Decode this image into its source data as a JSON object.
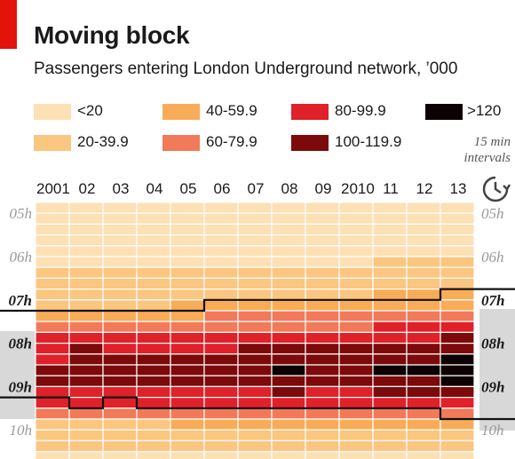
{
  "title": "Moving block",
  "subtitle": "Passengers entering London Underground network, ’000",
  "note": [
    "15 min",
    "intervals"
  ],
  "legend": [
    {
      "label": "<20",
      "color": "#fde0b4"
    },
    {
      "label": "20-39.9",
      "color": "#fbc680"
    },
    {
      "label": "40-59.9",
      "color": "#f8ac58"
    },
    {
      "label": "60-79.9",
      "color": "#f07a5a"
    },
    {
      "label": "80-99.9",
      "color": "#e0212a"
    },
    {
      "label": "100-119.9",
      "color": "#7d0a0a"
    },
    {
      "label": ">120",
      "color": "#0d0203"
    }
  ],
  "chart_data": {
    "type": "heatmap",
    "title": "Moving block",
    "subtitle": "Passengers entering London Underground network, ’000",
    "x_categories": [
      "2001",
      "02",
      "03",
      "04",
      "05",
      "06",
      "07",
      "08",
      "09",
      "2010",
      "11",
      "12",
      "13"
    ],
    "y_tick_labels": [
      "05h",
      "06h",
      "07h",
      "08h",
      "09h",
      "10h"
    ],
    "interval": "15 min intervals",
    "first_row_time": "04:45",
    "row_count": 24,
    "bins": [
      "<20",
      "20-39.9",
      "40-59.9",
      "60-79.9",
      "80-99.9",
      "100-119.9",
      ">120"
    ],
    "values_by_column": [
      [
        0,
        0,
        0,
        0,
        0,
        0,
        1,
        1,
        1,
        1,
        2,
        3,
        4,
        4,
        4,
        5,
        5,
        4,
        4,
        3,
        1,
        1,
        1,
        0
      ],
      [
        0,
        0,
        0,
        0,
        0,
        0,
        1,
        1,
        1,
        1,
        2,
        3,
        4,
        5,
        5,
        5,
        5,
        4,
        4,
        3,
        1,
        1,
        1,
        0
      ],
      [
        0,
        0,
        0,
        0,
        0,
        0,
        1,
        1,
        1,
        1,
        2,
        3,
        4,
        4,
        5,
        5,
        5,
        4,
        4,
        3,
        1,
        1,
        1,
        0
      ],
      [
        0,
        0,
        0,
        0,
        0,
        0,
        1,
        1,
        1,
        1,
        2,
        3,
        4,
        4,
        5,
        5,
        5,
        4,
        4,
        3,
        1,
        1,
        1,
        0
      ],
      [
        0,
        0,
        0,
        0,
        0,
        0,
        1,
        1,
        1,
        2,
        2,
        3,
        4,
        4,
        5,
        5,
        5,
        4,
        4,
        3,
        2,
        1,
        1,
        0
      ],
      [
        0,
        0,
        0,
        0,
        0,
        0,
        1,
        1,
        1,
        2,
        3,
        3,
        4,
        4,
        5,
        5,
        5,
        4,
        4,
        3,
        2,
        1,
        1,
        0
      ],
      [
        0,
        0,
        0,
        0,
        0,
        0,
        1,
        1,
        1,
        2,
        3,
        3,
        4,
        5,
        5,
        5,
        5,
        4,
        4,
        3,
        2,
        1,
        1,
        0
      ],
      [
        0,
        0,
        0,
        0,
        0,
        0,
        1,
        1,
        1,
        2,
        3,
        3,
        4,
        5,
        5,
        6,
        5,
        5,
        4,
        3,
        2,
        1,
        1,
        0
      ],
      [
        0,
        0,
        0,
        0,
        0,
        0,
        1,
        1,
        1,
        2,
        3,
        3,
        4,
        5,
        5,
        5,
        5,
        4,
        4,
        3,
        2,
        1,
        1,
        0
      ],
      [
        0,
        0,
        0,
        0,
        0,
        0,
        1,
        1,
        1,
        2,
        3,
        3,
        4,
        5,
        5,
        5,
        5,
        4,
        4,
        3,
        2,
        1,
        1,
        0
      ],
      [
        0,
        0,
        0,
        0,
        0,
        1,
        1,
        1,
        2,
        2,
        3,
        4,
        4,
        5,
        5,
        6,
        5,
        5,
        4,
        3,
        2,
        1,
        1,
        0
      ],
      [
        0,
        0,
        0,
        0,
        0,
        1,
        1,
        1,
        2,
        2,
        3,
        4,
        4,
        5,
        5,
        6,
        5,
        5,
        4,
        3,
        2,
        1,
        1,
        0
      ],
      [
        0,
        0,
        0,
        0,
        0,
        1,
        1,
        1,
        2,
        2,
        3,
        4,
        5,
        5,
        6,
        6,
        6,
        5,
        4,
        3,
        2,
        1,
        1,
        0
      ]
    ],
    "peak_band": {
      "start_time": [
        "07:15",
        "07:15",
        "07:15",
        "07:15",
        "07:15",
        "07:00",
        "07:00",
        "07:00",
        "07:00",
        "07:00",
        "07:00",
        "07:00",
        "06:45"
      ],
      "end_time": [
        "09:15",
        "09:30",
        "09:15",
        "09:30",
        "09:30",
        "09:30",
        "09:30",
        "09:30",
        "09:30",
        "09:30",
        "09:30",
        "09:30",
        "09:45"
      ]
    }
  }
}
